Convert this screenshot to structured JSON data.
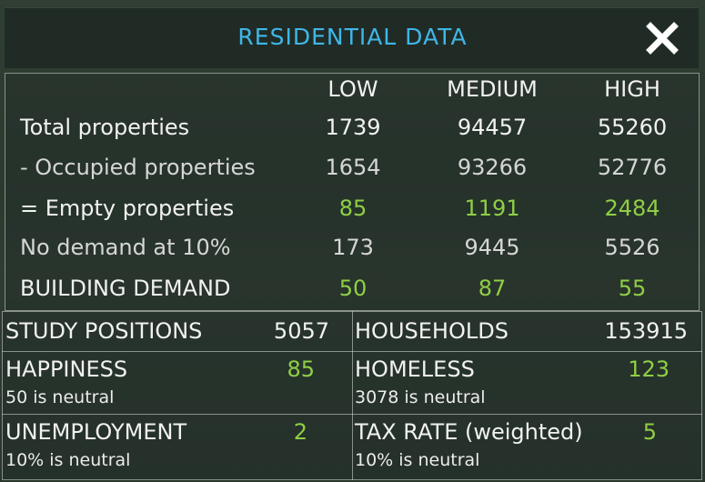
{
  "title": "RESIDENTIAL DATA",
  "columns": [
    "LOW",
    "MEDIUM",
    "HIGH"
  ],
  "rows": [
    {
      "label": "Total properties",
      "values": [
        "1739",
        "94457",
        "55260"
      ]
    },
    {
      "label": "- Occupied properties",
      "values": [
        "1654",
        "93266",
        "52776"
      ]
    },
    {
      "label": "= Empty properties",
      "values": [
        "85",
        "1191",
        "2484"
      ]
    },
    {
      "label": "No demand at 10%",
      "values": [
        "173",
        "9445",
        "5526"
      ]
    },
    {
      "label": "BUILDING DEMAND",
      "values": [
        "50",
        "87",
        "55"
      ]
    }
  ],
  "stats": {
    "study_positions": {
      "label": "STUDY POSITIONS",
      "value": "5057"
    },
    "households": {
      "label": "HOUSEHOLDS",
      "value": "153915"
    },
    "happiness": {
      "label": "HAPPINESS",
      "value": "85",
      "sub": "50 is neutral"
    },
    "homeless": {
      "label": "HOMELESS",
      "value": "123",
      "sub": "3078 is neutral"
    },
    "unemployment": {
      "label": "UNEMPLOYMENT",
      "value": "2",
      "sub": "10% is neutral"
    },
    "tax_rate": {
      "label": "TAX RATE (weighted)",
      "value": "5",
      "sub": "10% is neutral"
    }
  },
  "colors": {
    "title": "#3fb6e8",
    "positive": "#8fcf45",
    "text": "#f2f2f2"
  },
  "icons": {
    "close": "close-icon"
  }
}
